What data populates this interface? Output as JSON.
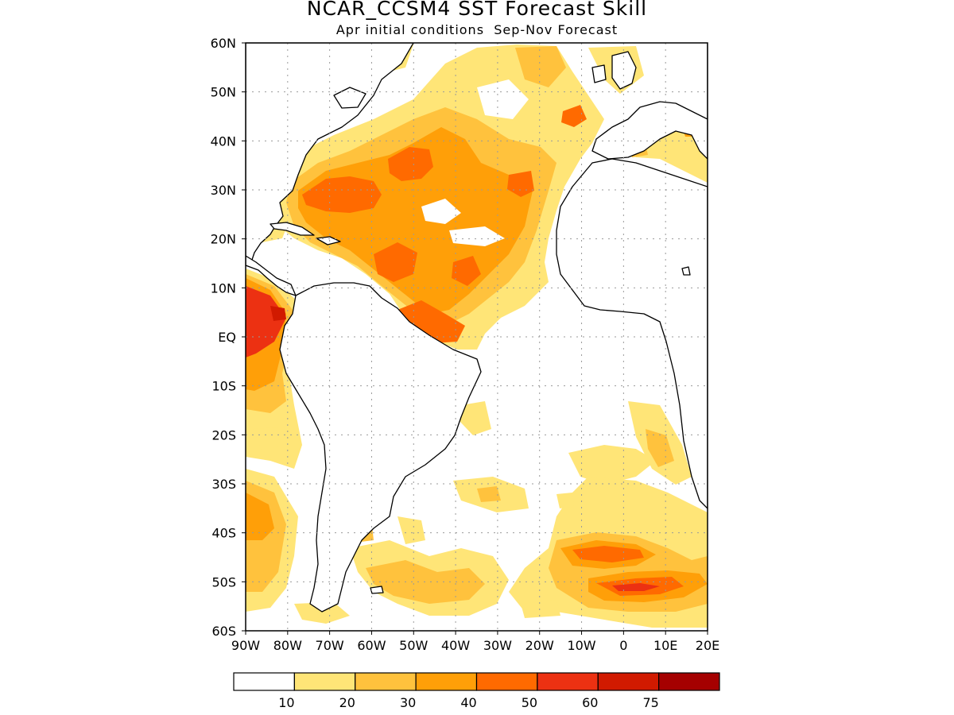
{
  "title": "NCAR_CCSM4 SST Forecast Skill",
  "subtitle": "Apr initial conditions  Sep-Nov Forecast",
  "lat_labels": [
    "60N",
    "50N",
    "40N",
    "30N",
    "20N",
    "10N",
    "EQ",
    "10S",
    "20S",
    "30S",
    "40S",
    "50S",
    "60S"
  ],
  "lon_labels": [
    "90W",
    "80W",
    "70W",
    "60W",
    "50W",
    "40W",
    "30W",
    "20W",
    "10W",
    "0",
    "10E",
    "20E"
  ],
  "colorbar": {
    "tick_labels": [
      "10",
      "20",
      "30",
      "40",
      "50",
      "60",
      "75"
    ],
    "colors": [
      "#ffffff",
      "#ffe577",
      "#ffc23d",
      "#ff9f08",
      "#ff6a00",
      "#ec3112",
      "#d11a00",
      "#a50000"
    ]
  },
  "colors": {
    "land_outline": "#000000",
    "grid": "#9a9a9a"
  }
}
